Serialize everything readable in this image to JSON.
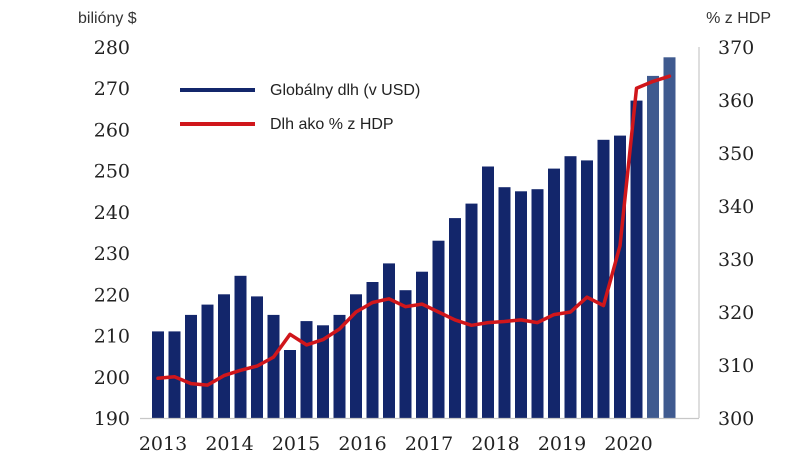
{
  "chart_data": {
    "type": "bar",
    "y_left_label": "bilióny $",
    "y_right_label": "% z HDP",
    "ylim_left": [
      190,
      280
    ],
    "ylim_right": [
      300,
      370
    ],
    "yticks_left": [
      "190",
      "200",
      "210",
      "220",
      "230",
      "240",
      "250",
      "260",
      "270",
      "280"
    ],
    "yticks_right": [
      "300",
      "310",
      "320",
      "330",
      "340",
      "350",
      "360",
      "370"
    ],
    "x_year_labels": [
      "2013",
      "2014",
      "2015",
      "2016",
      "2017",
      "2018",
      "2019",
      "2020"
    ],
    "grid": false,
    "legend_position": "top-left",
    "colors": {
      "bar": "#13266b",
      "bar_highlight": "#3f5a8f",
      "line": "#d0161b",
      "axis": "#c7c7c7"
    },
    "series": [
      {
        "name": "Globálny dlh (v USD)",
        "type": "bar",
        "axis": "left",
        "values": [
          211,
          211,
          215,
          217.5,
          220,
          224.5,
          219.5,
          215,
          206.5,
          213.5,
          212.5,
          215,
          220,
          223,
          227.5,
          221,
          225.5,
          233,
          238.5,
          242,
          251,
          246,
          245,
          245.5,
          250.5,
          253.5,
          252.5,
          257.5,
          258.5,
          267,
          273,
          277.5
        ],
        "highlight_last": 2
      },
      {
        "name": "Dlh ako % z HDP",
        "type": "line",
        "axis": "right",
        "values": [
          307.5,
          307.8,
          306.5,
          306.2,
          308,
          309,
          309.8,
          311.5,
          315.8,
          313.8,
          314.8,
          316.8,
          320,
          321.8,
          322.5,
          321,
          321.5,
          320,
          318.5,
          317.5,
          318,
          318.2,
          318.5,
          318,
          319.5,
          320,
          322.8,
          321.2,
          332.5,
          362.2,
          363.5,
          364.5
        ]
      }
    ]
  }
}
